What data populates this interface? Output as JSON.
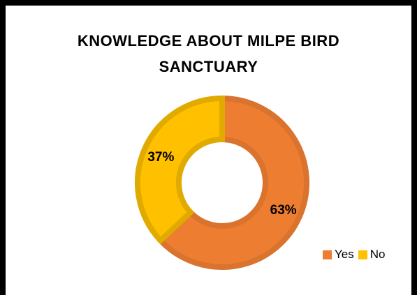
{
  "chart_data": {
    "type": "pie",
    "donut": true,
    "title_lines": [
      "KNOWLEDGE ABOUT MILPE BIRD",
      "SANCTUARY"
    ],
    "categories": [
      "Yes",
      "No"
    ],
    "values": [
      63,
      37
    ],
    "data_labels": [
      "63%",
      "37%"
    ],
    "colors": {
      "Yes": "#ED7D31",
      "No": "#FFC000"
    },
    "edge_colors": {
      "Yes": "#D9732D",
      "No": "#E0AA00"
    },
    "legend": {
      "placement": "bottom-right",
      "entries": [
        "Yes",
        "No"
      ]
    }
  }
}
